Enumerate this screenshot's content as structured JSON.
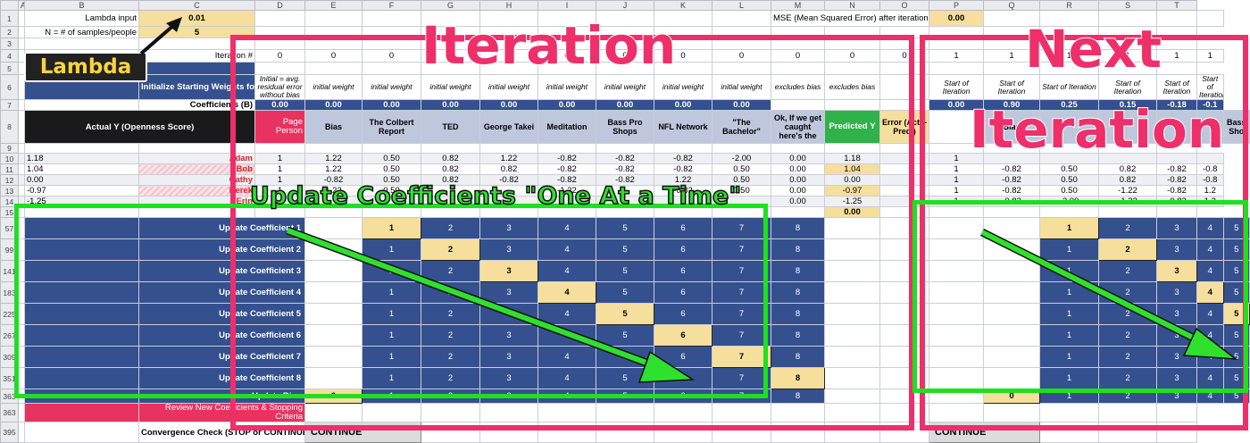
{
  "columns": [
    "",
    "A",
    "B",
    "C",
    "D",
    "E",
    "F",
    "G",
    "H",
    "I",
    "J",
    "K",
    "L",
    "M",
    "N",
    "O",
    "P",
    "Q",
    "R",
    "S",
    "T"
  ],
  "rownums": [
    "1",
    "2",
    "3",
    "4",
    "5",
    "6",
    "7",
    "8",
    "9",
    "10",
    "11",
    "12",
    "13",
    "14",
    "15",
    "57",
    "99",
    "141",
    "183",
    "225",
    "267",
    "309",
    "351",
    "363",
    "395"
  ],
  "params": {
    "lambda_label": "Lambda input",
    "lambda_value": "0.01",
    "n_label": "N = # of samples/people",
    "n_value": "5",
    "iteration_label": "Iteration #",
    "mse_label": "MSE (Mean Squared Error) after iteration",
    "mse_value": "0.00"
  },
  "iteration_row": [
    "0",
    "0",
    "0",
    "0",
    "0",
    "0",
    "0",
    "0",
    "0",
    "0",
    "0",
    "0"
  ],
  "next_iteration_row": [
    "1",
    "1",
    "1",
    "1",
    "1",
    "1"
  ],
  "init_label": "Initialize Starting Weights for Coefficients",
  "weight_notes": [
    "Initial = avg. residual error without bias",
    "initial weight",
    "initial weight",
    "initial weight",
    "initial weight",
    "initial weight",
    "initial weight",
    "initial weight",
    "initial weight"
  ],
  "excludes_bias": "excludes bias",
  "start_notes": [
    "Start of Iteration",
    "Start of Iteration",
    "Start of Iteration",
    "Start of Iteration",
    "Start of Iteration",
    "Start of Iteration"
  ],
  "coef_label": "Coefficients (B)",
  "coef_values": [
    "0.00",
    "0.00",
    "0.00",
    "0.00",
    "0.00",
    "0.00",
    "0.00",
    "0.00",
    "0.00"
  ],
  "next_coef_values": [
    "0.00",
    "0.90",
    "0.25",
    "0.15",
    "-0.18",
    "-0.1"
  ],
  "actual_y_header": "Actual Y (Openness Score)",
  "person_header": "Page Person",
  "feature_headers": [
    "Bias",
    "The Colbert Report",
    "TED",
    "George Takei",
    "Meditation",
    "Bass Pro Shops",
    "NFL Network",
    "\"The Bachelor\"",
    "Ok, If we get caught here's the"
  ],
  "predicted_header": "Predicted Y",
  "error_header": "Error (Act. - Pred.)",
  "next_feature_headers": [
    "Bias",
    "",
    "",
    "",
    "",
    "Bass Sho"
  ],
  "people": [
    {
      "y": "1.18",
      "name": "Adam",
      "vals": [
        "1",
        "1.22",
        "0.50",
        "0.82",
        "1.22",
        "-0.82",
        "-0.82",
        "-0.82",
        "-2.00"
      ],
      "pred": "0.00",
      "err": "1.18",
      "next": [
        "1",
        "",
        "",
        "",
        "",
        ""
      ]
    },
    {
      "y": "1.04",
      "name": "Bob",
      "vals": [
        "1",
        "1.22",
        "0.50",
        "0.82",
        "0.82",
        "-0.82",
        "-0.82",
        "-0.82",
        "0.50"
      ],
      "pred": "0.00",
      "err": "1.04",
      "next": [
        "1",
        "-0.82",
        "0.50",
        "0.82",
        "-0.82",
        "-0.8"
      ]
    },
    {
      "y": "0.00",
      "name": "Cathy",
      "vals": [
        "1",
        "-0.82",
        "0.50",
        "0.82",
        "-0.82",
        "-0.82",
        "-0.82",
        "1.22",
        "0.50"
      ],
      "pred": "0.00",
      "err": "0.00",
      "next": [
        "1",
        "-0.82",
        "0.50",
        "0.82",
        "-0.82",
        "-0.8"
      ]
    },
    {
      "y": "-0.97",
      "name": "Derek",
      "vals": [
        "1",
        "1.22",
        "0.50",
        "",
        "",
        "-1.22",
        "",
        "-0.82",
        "0.50"
      ],
      "pred": "0.00",
      "err": "-0.97",
      "next": [
        "1",
        "-0.82",
        "0.50",
        "-1.22",
        "-0.82",
        "1.2"
      ]
    },
    {
      "y": "-1.25",
      "name": "Erin",
      "vals": [
        "",
        "",
        "",
        "",
        "",
        "",
        "",
        "",
        ""
      ],
      "pred": "0.00",
      "err": "-1.25",
      "next": [
        "1",
        "-0.82",
        "-2.00",
        "-1.22",
        "-0.82",
        "1.2"
      ]
    }
  ],
  "error_total": "0.00",
  "update_labels": [
    "Update Coefficient 1",
    "Update Coefficient 2",
    "Update Coefficient 3",
    "Update Coefficient 4",
    "Update Coefficient 5",
    "Update Coefficient 6",
    "Update Coefficient 7",
    "Update Coefficient 8",
    "Update Bias"
  ],
  "bias_cell": "0",
  "step_numbers": [
    "1",
    "2",
    "3",
    "4",
    "5",
    "6",
    "7",
    "8"
  ],
  "next_step_numbers": [
    "1",
    "2",
    "3",
    "4",
    "5"
  ],
  "review_label": "Review New Coefficients & Stopping Criteria",
  "convergence_label": "Convergence Check (STOP or CONTINUE)",
  "continue_label": "CONTINUE",
  "next_continue_label": "CONTINUE",
  "annotations": {
    "lambda": "Lambda",
    "iteration": "Iteration",
    "next_iteration_1": "Next",
    "next_iteration_2": "Iteration",
    "update_one_at_a_time": "Update Coefficients \"One At a Time\""
  },
  "colors": {
    "navy": "#34508e",
    "gold": "#f6df9c",
    "pink_frame": "#ee2f6a",
    "green_frame": "#1fe01f"
  }
}
